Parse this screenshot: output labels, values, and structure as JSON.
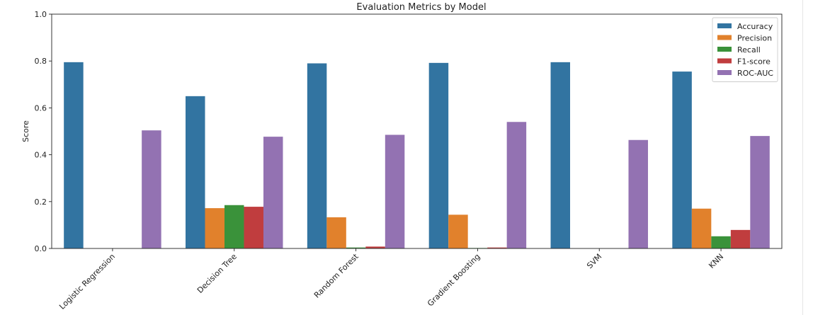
{
  "chart_data": {
    "type": "bar",
    "title": "Evaluation Metrics by Model",
    "xlabel": "",
    "ylabel": "Score",
    "ylim": [
      0,
      1.0
    ],
    "yticks": [
      0.0,
      0.2,
      0.4,
      0.6,
      0.8,
      1.0
    ],
    "ytick_labels": [
      "0.0",
      "0.2",
      "0.4",
      "0.6",
      "0.8",
      "1.0"
    ],
    "grid": false,
    "legend_position": "top-right",
    "categories": [
      "Logistic Regression",
      "Decision Tree",
      "Random Forest",
      "Gradient Boosting",
      "SVM",
      "KNN"
    ],
    "series": [
      {
        "name": "Accuracy",
        "color": "#3274a1",
        "values": [
          0.795,
          0.65,
          0.79,
          0.792,
          0.795,
          0.755
        ]
      },
      {
        "name": "Precision",
        "color": "#e1812c",
        "values": [
          0.0,
          0.172,
          0.133,
          0.144,
          0.0,
          0.17
        ]
      },
      {
        "name": "Recall",
        "color": "#3a923a",
        "values": [
          0.0,
          0.185,
          0.004,
          0.002,
          0.0,
          0.052
        ]
      },
      {
        "name": "F1-score",
        "color": "#c03d3e",
        "values": [
          0.0,
          0.178,
          0.008,
          0.004,
          0.0,
          0.079
        ]
      },
      {
        "name": "ROC-AUC",
        "color": "#9372b2",
        "values": [
          0.504,
          0.477,
          0.485,
          0.54,
          0.463,
          0.48
        ]
      }
    ]
  }
}
